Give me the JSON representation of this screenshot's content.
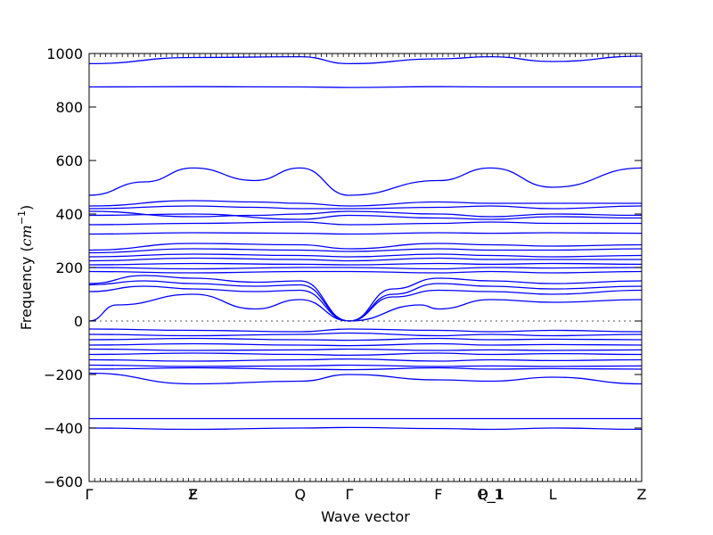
{
  "chart_data": {
    "type": "line",
    "title": "",
    "xlabel": "Wave vector",
    "ylabel_prefix": "Frequency (",
    "ylabel_math": "cm",
    "ylabel_sup": "−1",
    "ylabel_suffix": ")",
    "ylim": [
      -600,
      1000
    ],
    "yticks": [
      -600,
      -400,
      -200,
      0,
      200,
      400,
      600,
      800,
      1000
    ],
    "ytick_labels": [
      "−600",
      "−400",
      "−200",
      "0",
      "200",
      "400",
      "600",
      "800",
      "1000"
    ],
    "xlim": [
      0,
      1
    ],
    "path_labels": [
      {
        "label": "Γ",
        "x": 0.0
      },
      {
        "label": "Z",
        "x": 0.188
      },
      {
        "label": "F",
        "x": 0.188
      },
      {
        "label": "Q",
        "x": 0.382
      },
      {
        "label": "Γ",
        "x": 0.471
      },
      {
        "label": "F",
        "x": 0.632
      },
      {
        "label": "P_1",
        "x": 0.727
      },
      {
        "label": "Q_1",
        "x": 0.727
      },
      {
        "label": "L",
        "x": 0.839
      },
      {
        "label": "Z",
        "x": 1.0
      }
    ],
    "zero_line": true,
    "line_color": "#0000ff",
    "zero_line_color": "#555555",
    "series": [
      {
        "x": [
          0,
          0.188,
          0.382,
          0.471,
          0.632,
          0.727,
          0.839,
          1.0
        ],
        "y": [
          962,
          985,
          988,
          962,
          980,
          988,
          970,
          990
        ]
      },
      {
        "x": [
          0,
          0.188,
          0.382,
          0.471,
          0.632,
          0.727,
          0.839,
          1.0
        ],
        "y": [
          875,
          876,
          875,
          873,
          876,
          875,
          875,
          875
        ]
      },
      {
        "x": [
          0,
          0.1,
          0.188,
          0.3,
          0.382,
          0.471,
          0.632,
          0.727,
          0.839,
          1.0
        ],
        "y": [
          470,
          520,
          572,
          525,
          572,
          470,
          525,
          572,
          500,
          572
        ]
      },
      {
        "x": [
          0,
          0.188,
          0.3,
          0.382,
          0.471,
          0.632,
          0.727,
          0.839,
          1.0
        ],
        "y": [
          430,
          450,
          445,
          440,
          430,
          445,
          440,
          440,
          440
        ]
      },
      {
        "x": [
          0,
          0.188,
          0.3,
          0.382,
          0.471,
          0.632,
          0.727,
          0.839,
          1.0
        ],
        "y": [
          420,
          430,
          425,
          420,
          420,
          425,
          430,
          420,
          430
        ]
      },
      {
        "x": [
          0,
          0.188,
          0.3,
          0.382,
          0.471,
          0.632,
          0.727,
          0.839,
          1.0
        ],
        "y": [
          410,
          390,
          395,
          400,
          410,
          400,
          390,
          400,
          395
        ]
      },
      {
        "x": [
          0,
          0.188,
          0.382,
          0.471,
          0.632,
          0.727,
          0.839,
          1.0
        ],
        "y": [
          395,
          400,
          380,
          395,
          385,
          380,
          390,
          385
        ]
      },
      {
        "x": [
          0,
          0.188,
          0.382,
          0.471,
          0.632,
          0.727,
          0.839,
          1.0
        ],
        "y": [
          360,
          365,
          370,
          360,
          365,
          370,
          365,
          365
        ]
      },
      {
        "x": [
          0,
          0.188,
          0.382,
          0.471,
          0.632,
          0.727,
          0.839,
          1.0
        ],
        "y": [
          325,
          330,
          328,
          325,
          330,
          328,
          330,
          328
        ]
      },
      {
        "x": [
          0,
          0.188,
          0.382,
          0.471,
          0.632,
          0.727,
          0.839,
          1.0
        ],
        "y": [
          265,
          290,
          285,
          270,
          290,
          285,
          280,
          285
        ]
      },
      {
        "x": [
          0,
          0.188,
          0.382,
          0.471,
          0.632,
          0.727,
          0.839,
          1.0
        ],
        "y": [
          255,
          270,
          265,
          260,
          270,
          265,
          265,
          270
        ]
      },
      {
        "x": [
          0,
          0.188,
          0.382,
          0.471,
          0.632,
          0.727,
          0.839,
          1.0
        ],
        "y": [
          240,
          250,
          245,
          240,
          250,
          245,
          240,
          245
        ]
      },
      {
        "x": [
          0,
          0.188,
          0.382,
          0.471,
          0.632,
          0.727,
          0.839,
          1.0
        ],
        "y": [
          225,
          235,
          230,
          225,
          235,
          230,
          230,
          230
        ]
      },
      {
        "x": [
          0,
          0.188,
          0.382,
          0.471,
          0.632,
          0.727,
          0.839,
          1.0
        ],
        "y": [
          210,
          215,
          212,
          210,
          215,
          212,
          215,
          212
        ]
      },
      {
        "x": [
          0,
          0.188,
          0.382,
          0.471,
          0.632,
          0.727,
          0.839,
          1.0
        ],
        "y": [
          200,
          195,
          200,
          200,
          195,
          200,
          198,
          200
        ]
      },
      {
        "x": [
          0,
          0.188,
          0.382,
          0.471,
          0.632,
          0.727,
          0.839,
          1.0
        ],
        "y": [
          185,
          180,
          185,
          185,
          180,
          185,
          180,
          185
        ]
      },
      {
        "x": [
          0,
          0.1,
          0.188,
          0.3,
          0.382,
          0.471,
          0.55,
          0.632,
          0.727,
          0.839,
          1.0
        ],
        "y": [
          140,
          170,
          160,
          145,
          150,
          0,
          120,
          160,
          150,
          140,
          150
        ]
      },
      {
        "x": [
          0,
          0.1,
          0.188,
          0.3,
          0.382,
          0.471,
          0.55,
          0.632,
          0.727,
          0.839,
          1.0
        ],
        "y": [
          135,
          150,
          140,
          130,
          135,
          0,
          100,
          140,
          130,
          120,
          130
        ]
      },
      {
        "x": [
          0,
          0.1,
          0.188,
          0.3,
          0.382,
          0.471,
          0.55,
          0.632,
          0.727,
          0.839,
          1.0
        ],
        "y": [
          110,
          130,
          120,
          110,
          115,
          0,
          90,
          115,
          110,
          100,
          115
        ]
      },
      {
        "x": [
          0,
          0.05,
          0.188,
          0.3,
          0.382,
          0.471,
          0.6,
          0.632,
          0.727,
          0.839,
          1.0
        ],
        "y": [
          0,
          60,
          100,
          45,
          80,
          0,
          60,
          45,
          80,
          70,
          80
        ]
      },
      {
        "x": [
          0,
          0.188,
          0.382,
          0.471,
          0.632,
          0.727,
          0.839,
          1.0
        ],
        "y": [
          -30,
          -35,
          -40,
          -30,
          -35,
          -40,
          -35,
          -40
        ]
      },
      {
        "x": [
          0,
          0.188,
          0.382,
          0.471,
          0.632,
          0.727,
          0.839,
          1.0
        ],
        "y": [
          -50,
          -55,
          -50,
          -45,
          -55,
          -50,
          -55,
          -50
        ]
      },
      {
        "x": [
          0,
          0.188,
          0.382,
          0.471,
          0.632,
          0.727,
          0.839,
          1.0
        ],
        "y": [
          -70,
          -65,
          -70,
          -72,
          -65,
          -70,
          -68,
          -70
        ]
      },
      {
        "x": [
          0,
          0.188,
          0.382,
          0.471,
          0.632,
          0.727,
          0.839,
          1.0
        ],
        "y": [
          -90,
          -85,
          -90,
          -92,
          -85,
          -90,
          -88,
          -90
        ]
      },
      {
        "x": [
          0,
          0.188,
          0.382,
          0.471,
          0.632,
          0.727,
          0.839,
          1.0
        ],
        "y": [
          -105,
          -110,
          -108,
          -105,
          -110,
          -108,
          -110,
          -108
        ]
      },
      {
        "x": [
          0,
          0.188,
          0.382,
          0.471,
          0.632,
          0.727,
          0.839,
          1.0
        ],
        "y": [
          -125,
          -120,
          -125,
          -128,
          -120,
          -125,
          -122,
          -125
        ]
      },
      {
        "x": [
          0,
          0.188,
          0.382,
          0.471,
          0.632,
          0.727,
          0.839,
          1.0
        ],
        "y": [
          -145,
          -150,
          -145,
          -142,
          -150,
          -145,
          -148,
          -145
        ]
      },
      {
        "x": [
          0,
          0.188,
          0.382,
          0.471,
          0.632,
          0.727,
          0.839,
          1.0
        ],
        "y": [
          -165,
          -170,
          -168,
          -165,
          -170,
          -168,
          -170,
          -168
        ]
      },
      {
        "x": [
          0,
          0.188,
          0.382,
          0.471,
          0.632,
          0.727,
          0.839,
          1.0
        ],
        "y": [
          -180,
          -175,
          -180,
          -182,
          -175,
          -180,
          -178,
          -180
        ]
      },
      {
        "x": [
          0,
          0.188,
          0.382,
          0.471,
          0.632,
          0.727,
          0.839,
          1.0
        ],
        "y": [
          -195,
          -235,
          -225,
          -200,
          -220,
          -225,
          -210,
          -235
        ]
      },
      {
        "x": [
          0,
          0.188,
          0.382,
          0.471,
          0.632,
          0.727,
          0.839,
          1.0
        ],
        "y": [
          -365,
          -365,
          -365,
          -365,
          -365,
          -365,
          -365,
          -365
        ]
      },
      {
        "x": [
          0,
          0.188,
          0.382,
          0.471,
          0.632,
          0.727,
          0.839,
          1.0
        ],
        "y": [
          -400,
          -405,
          -400,
          -398,
          -402,
          -405,
          -400,
          -405
        ]
      }
    ]
  }
}
